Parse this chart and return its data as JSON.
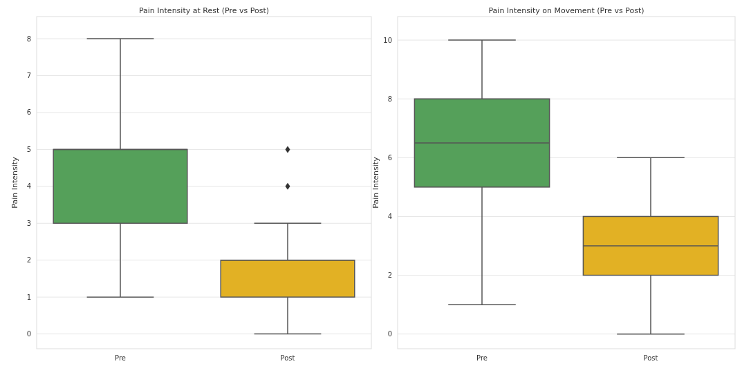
{
  "chart_data": [
    {
      "type": "box",
      "title": "Pain Intensity at Rest (Pre vs Post)",
      "ylabel": "Pain Intensity",
      "categories": [
        "Pre",
        "Post"
      ],
      "colors": [
        "#55a05a",
        "#e2b124"
      ],
      "ylim": [
        -0.4,
        8.6
      ],
      "yticks": [
        0,
        1,
        2,
        3,
        4,
        5,
        6,
        7,
        8
      ],
      "grid": "y",
      "boxes": [
        {
          "low": 1,
          "q1": 3,
          "median": 5,
          "q3": 5,
          "high": 8
        },
        {
          "low": 0,
          "q1": 1,
          "median": 2,
          "q3": 2,
          "high": 3,
          "outliers": [
            4,
            5
          ]
        }
      ]
    },
    {
      "type": "box",
      "title": "Pain Intensity on Movement (Pre vs Post)",
      "ylabel": "Pain Intensity",
      "categories": [
        "Pre",
        "Post"
      ],
      "colors": [
        "#55a05a",
        "#e2b124"
      ],
      "ylim": [
        -0.5,
        10.8
      ],
      "yticks": [
        0,
        2,
        4,
        6,
        8,
        10
      ],
      "grid": "y",
      "boxes": [
        {
          "low": 1,
          "q1": 5,
          "median": 6.5,
          "q3": 8,
          "high": 10
        },
        {
          "low": 0,
          "q1": 2,
          "median": 3,
          "q3": 4,
          "high": 6
        }
      ]
    }
  ]
}
